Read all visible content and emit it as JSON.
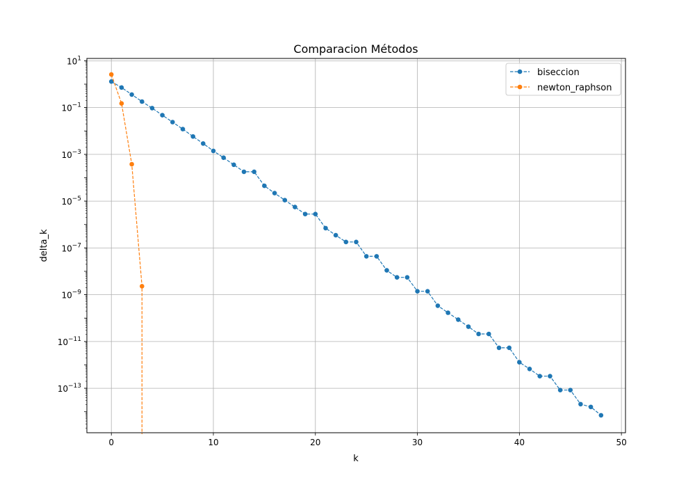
{
  "chart_data": {
    "type": "line",
    "title": "Comparacion Métodos",
    "xlabel": "k",
    "ylabel": "delta_k",
    "xlim": [
      -2.4,
      50.4
    ],
    "ylim_log10": [
      -14.9,
      1.1
    ],
    "y_scale": "log",
    "grid": true,
    "legend_position": "top-right",
    "x_ticks": [
      0,
      10,
      20,
      30,
      40,
      50
    ],
    "x_tick_labels": [
      "0",
      "10",
      "20",
      "30",
      "40",
      "50"
    ],
    "y_ticks_exp": [
      1,
      -1,
      -3,
      -5,
      -7,
      -9,
      -11,
      -13
    ],
    "y_tick_base": "10",
    "y_tick_exponents": [
      "1",
      "−1",
      "−3",
      "−5",
      "−7",
      "−9",
      "−11",
      "−13"
    ],
    "series": [
      {
        "name": "biseccion",
        "color": "#1f77b4",
        "x": [
          0,
          1,
          2,
          3,
          4,
          5,
          6,
          7,
          8,
          9,
          10,
          11,
          12,
          13,
          14,
          15,
          16,
          17,
          18,
          19,
          20,
          21,
          22,
          23,
          24,
          25,
          26,
          27,
          28,
          29,
          30,
          31,
          32,
          33,
          34,
          35,
          36,
          37,
          38,
          39,
          40,
          41,
          42,
          43,
          44,
          45,
          46,
          47,
          48
        ],
        "y": [
          1.3,
          0.72,
          0.36,
          0.18,
          0.095,
          0.047,
          0.024,
          0.012,
          0.0058,
          0.0029,
          0.0014,
          0.00072,
          0.00036,
          0.00018,
          0.00018,
          4.5e-05,
          2.2e-05,
          1.1e-05,
          5.6e-06,
          2.8e-06,
          2.8e-06,
          7e-07,
          3.5e-07,
          1.8e-07,
          1.8e-07,
          4.4e-08,
          4.4e-08,
          1.1e-08,
          5.5e-09,
          5.5e-09,
          1.4e-09,
          1.4e-09,
          3.4e-10,
          1.7e-10,
          8.6e-11,
          4.3e-11,
          2.1e-11,
          2.1e-11,
          5.4e-12,
          5.4e-12,
          1.3e-12,
          6.7e-13,
          3.3e-13,
          3.3e-13,
          8.4e-14,
          8.4e-14,
          2.1e-14,
          1.6e-14,
          7e-15
        ]
      },
      {
        "name": "newton_raphson",
        "color": "#ff7f0e",
        "x": [
          0,
          1,
          2,
          3
        ],
        "y": [
          2.6,
          0.15,
          0.00038,
          2.3e-09
        ],
        "tail_to_zero": true
      }
    ]
  }
}
